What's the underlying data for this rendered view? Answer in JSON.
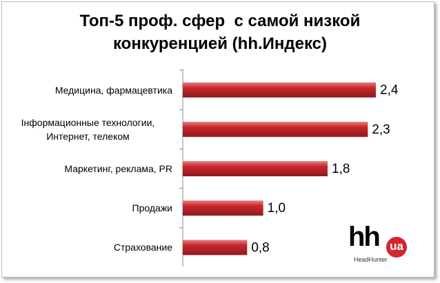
{
  "chart_data": {
    "type": "hbar",
    "title": "Топ-5 проф. сфер  с самой низкой конкуренцией (hh.Индекс)",
    "categories": [
      "Медицина, фармацевтика",
      "Інформационные технологии, Интернет, телеком",
      "Маркетинг, реклама, PR",
      "Продажи",
      "Страхование"
    ],
    "values": [
      2.4,
      2.3,
      1.8,
      1.0,
      0.8
    ],
    "value_labels": [
      "2,4",
      "2,3",
      "1,8",
      "1,0",
      "0,8"
    ],
    "color": "#c8282d"
  },
  "logo": {
    "mark": "hh",
    "region": "ua",
    "name": "HeadHunter"
  }
}
